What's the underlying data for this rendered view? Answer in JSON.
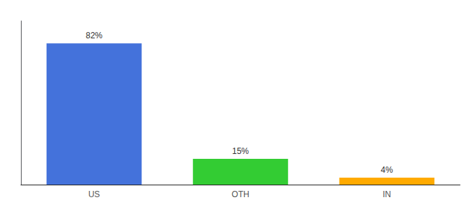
{
  "chart_data": {
    "type": "bar",
    "categories": [
      "US",
      "OTH",
      "IN"
    ],
    "values": [
      82,
      15,
      4
    ],
    "value_labels": [
      "82%",
      "15%",
      "4%"
    ],
    "colors": [
      "#4472db",
      "#33cc33",
      "#ffaa00"
    ],
    "data_labels": true,
    "ylim": [
      0,
      95
    ],
    "yticks": [],
    "tick_labels": "x",
    "grid": false
  }
}
